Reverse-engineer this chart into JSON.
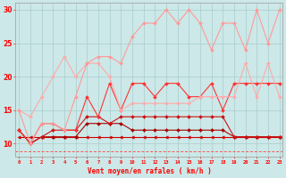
{
  "x": [
    0,
    1,
    2,
    3,
    4,
    5,
    6,
    7,
    8,
    9,
    10,
    11,
    12,
    13,
    14,
    15,
    16,
    17,
    18,
    19,
    20,
    21,
    22,
    23
  ],
  "line_top": [
    15,
    10,
    13,
    13,
    12,
    17,
    22,
    23,
    23,
    22,
    26,
    28,
    28,
    30,
    28,
    30,
    28,
    24,
    28,
    28,
    24,
    30,
    25,
    30
  ],
  "line_upper": [
    15,
    14,
    17,
    20,
    23,
    20,
    22,
    22,
    20,
    15,
    16,
    16,
    16,
    16,
    16,
    16,
    17,
    17,
    17,
    17,
    22,
    17,
    22,
    17
  ],
  "line_mid": [
    12,
    10,
    13,
    13,
    12,
    12,
    17,
    14,
    19,
    15,
    19,
    19,
    17,
    19,
    19,
    17,
    17,
    19,
    15,
    19,
    19,
    19,
    19,
    19
  ],
  "line_low1": [
    12,
    10,
    11,
    12,
    12,
    12,
    14,
    14,
    13,
    14,
    14,
    14,
    14,
    14,
    14,
    14,
    14,
    14,
    14,
    11,
    11,
    11,
    11,
    11
  ],
  "line_low2": [
    12,
    10,
    11,
    11,
    11,
    11,
    13,
    13,
    13,
    13,
    12,
    12,
    12,
    12,
    12,
    12,
    12,
    12,
    12,
    11,
    11,
    11,
    11,
    11
  ],
  "line_flat": [
    11,
    11,
    11,
    11,
    11,
    11,
    11,
    11,
    11,
    11,
    11,
    11,
    11,
    11,
    11,
    11,
    11,
    11,
    11,
    11,
    11,
    11,
    11,
    11
  ],
  "line_dash_y": 8.8,
  "color_top": "#ff9999",
  "color_upper": "#ffaaaa",
  "color_mid": "#ff3333",
  "color_low1": "#cc1111",
  "color_low2": "#aa0000",
  "color_flat": "#cc0000",
  "color_dash": "#ff4444",
  "bg_color": "#cce8e8",
  "grid_color": "#aacccc",
  "xlabel": "Vent moyen/en rafales ( km/h )",
  "ylabel_ticks": [
    10,
    15,
    20,
    25,
    30
  ],
  "xlim": [
    0,
    23
  ],
  "ylim": [
    8,
    31
  ],
  "xticks": [
    0,
    1,
    2,
    3,
    4,
    5,
    6,
    7,
    8,
    9,
    10,
    11,
    12,
    13,
    14,
    15,
    16,
    17,
    18,
    19,
    20,
    21,
    22,
    23
  ],
  "figsize": [
    3.2,
    2.0
  ],
  "dpi": 100
}
